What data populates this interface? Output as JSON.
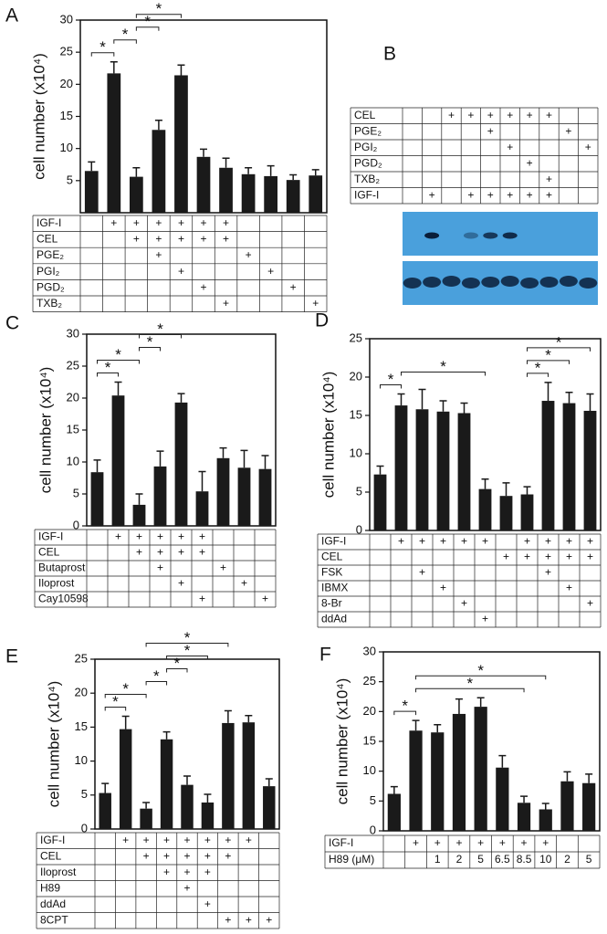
{
  "chart_data": [
    {
      "type": "bar",
      "panel": "A",
      "ylabel": "cell number (x10⁴)",
      "color": "#1a1a1a",
      "values": [
        6.5,
        21.7,
        5.6,
        12.9,
        21.4,
        8.7,
        7.0,
        6.0,
        5.7,
        5.1,
        5.8
      ],
      "errors": [
        1.4,
        1.8,
        1.4,
        1.5,
        1.6,
        1.2,
        1.5,
        1.0,
        1.6,
        0.8,
        0.9
      ],
      "ylim": [
        0,
        30
      ],
      "yticks": [
        5,
        10,
        15,
        20,
        25,
        30
      ],
      "conditions": [
        {
          "label": "IGF-I",
          "cells": [
            null,
            "+",
            "+",
            "+",
            "+",
            "+",
            "+",
            null,
            null,
            null,
            null
          ]
        },
        {
          "label": "CEL",
          "cells": [
            null,
            null,
            "+",
            "+",
            "+",
            "+",
            "+",
            null,
            null,
            null,
            null
          ]
        },
        {
          "label": "PGE₂",
          "cells": [
            null,
            null,
            null,
            "+",
            null,
            null,
            null,
            "+",
            null,
            null,
            null
          ]
        },
        {
          "label": "PGI₂",
          "cells": [
            null,
            null,
            null,
            null,
            "+",
            null,
            null,
            null,
            "+",
            null,
            null
          ]
        },
        {
          "label": "PGD₂",
          "cells": [
            null,
            null,
            null,
            null,
            null,
            "+",
            null,
            null,
            null,
            "+",
            null
          ]
        },
        {
          "label": "TXB₂",
          "cells": [
            null,
            null,
            null,
            null,
            null,
            null,
            "+",
            null,
            null,
            null,
            "+"
          ]
        }
      ],
      "comparisons": [
        {
          "from": 0,
          "to": 1,
          "label": "*"
        },
        {
          "from": 1,
          "to": 2,
          "label": "*"
        },
        {
          "from": 2,
          "to": 3,
          "label": "*"
        },
        {
          "from": 2,
          "to": 4,
          "label": "*"
        }
      ]
    },
    {
      "type": "bar",
      "panel": "C",
      "ylabel": "cell number (x10⁴)",
      "color": "#1a1a1a",
      "values": [
        8.4,
        20.4,
        3.3,
        9.3,
        19.3,
        5.4,
        10.6,
        9.1,
        8.9
      ],
      "errors": [
        1.9,
        2.1,
        1.7,
        2.4,
        1.4,
        3.1,
        1.6,
        2.7,
        2.1
      ],
      "ylim": [
        0,
        30
      ],
      "yticks": [
        0,
        5,
        10,
        15,
        20,
        25,
        30
      ],
      "conditions": [
        {
          "label": "IGF-I",
          "cells": [
            null,
            "+",
            "+",
            "+",
            "+",
            "+",
            null,
            null,
            null
          ]
        },
        {
          "label": "CEL",
          "cells": [
            null,
            null,
            "+",
            "+",
            "+",
            "+",
            null,
            null,
            null
          ]
        },
        {
          "label": "Butaprost",
          "cells": [
            null,
            null,
            null,
            "+",
            null,
            null,
            "+",
            null,
            null
          ]
        },
        {
          "label": "Iloprost",
          "cells": [
            null,
            null,
            null,
            null,
            "+",
            null,
            null,
            "+",
            null
          ]
        },
        {
          "label": "Cay10598",
          "cells": [
            null,
            null,
            null,
            null,
            null,
            "+",
            null,
            null,
            "+"
          ]
        }
      ],
      "comparisons": [
        {
          "from": 0,
          "to": 1,
          "label": "*"
        },
        {
          "from": 0,
          "to": 2,
          "label": "*"
        },
        {
          "from": 2,
          "to": 3,
          "label": "*"
        },
        {
          "from": 2,
          "to": 4,
          "label": "*"
        }
      ]
    },
    {
      "type": "bar",
      "panel": "D",
      "ylabel": "cell number (x10⁴)",
      "color": "#1a1a1a",
      "values": [
        7.3,
        16.3,
        15.8,
        15.5,
        15.3,
        5.4,
        4.5,
        4.7,
        16.9,
        16.6,
        15.6
      ],
      "errors": [
        1.1,
        1.5,
        2.6,
        1.4,
        1.3,
        1.3,
        1.7,
        1.0,
        2.4,
        1.4,
        2.2
      ],
      "ylim": [
        0,
        25
      ],
      "yticks": [
        0,
        5,
        10,
        15,
        20,
        25
      ],
      "conditions": [
        {
          "label": "IGF-I",
          "cells": [
            null,
            "+",
            "+",
            "+",
            "+",
            "+",
            null,
            "+",
            "+",
            "+",
            "+"
          ]
        },
        {
          "label": "CEL",
          "cells": [
            null,
            null,
            null,
            null,
            null,
            null,
            "+",
            "+",
            "+",
            "+",
            "+"
          ]
        },
        {
          "label": "FSK",
          "cells": [
            null,
            null,
            "+",
            null,
            null,
            null,
            null,
            null,
            "+",
            null,
            null
          ]
        },
        {
          "label": "IBMX",
          "cells": [
            null,
            null,
            null,
            "+",
            null,
            null,
            null,
            null,
            null,
            "+",
            null
          ]
        },
        {
          "label": "8-Br",
          "cells": [
            null,
            null,
            null,
            null,
            "+",
            null,
            null,
            null,
            null,
            null,
            "+"
          ]
        },
        {
          "label": "ddAd",
          "cells": [
            null,
            null,
            null,
            null,
            null,
            "+",
            null,
            null,
            null,
            null,
            null
          ]
        }
      ],
      "comparisons": [
        {
          "from": 0,
          "to": 1,
          "label": "*"
        },
        {
          "from": 1,
          "to": 5,
          "label": "*"
        },
        {
          "from": 7,
          "to": 8,
          "label": "*"
        },
        {
          "from": 7,
          "to": 9,
          "label": "*"
        },
        {
          "from": 7,
          "to": 10,
          "label": "*"
        }
      ]
    },
    {
      "type": "bar",
      "panel": "E",
      "ylabel": "cell number (x10⁴)",
      "color": "#1a1a1a",
      "values": [
        5.3,
        14.7,
        3.0,
        13.2,
        6.5,
        3.9,
        15.6,
        15.7,
        6.3
      ],
      "errors": [
        1.4,
        1.9,
        0.9,
        1.1,
        1.3,
        1.2,
        1.8,
        1.0,
        1.1
      ],
      "ylim": [
        0,
        25
      ],
      "yticks": [
        0,
        5,
        10,
        15,
        20,
        25
      ],
      "conditions": [
        {
          "label": "IGF-I",
          "cells": [
            null,
            "+",
            "+",
            "+",
            "+",
            "+",
            "+",
            "+",
            null
          ]
        },
        {
          "label": "CEL",
          "cells": [
            null,
            null,
            "+",
            "+",
            "+",
            "+",
            "+",
            null,
            null
          ]
        },
        {
          "label": "Iloprost",
          "cells": [
            null,
            null,
            null,
            "+",
            "+",
            "+",
            null,
            null,
            null
          ]
        },
        {
          "label": "H89",
          "cells": [
            null,
            null,
            null,
            null,
            "+",
            null,
            null,
            null,
            null
          ]
        },
        {
          "label": "ddAd",
          "cells": [
            null,
            null,
            null,
            null,
            null,
            "+",
            null,
            null,
            null
          ]
        },
        {
          "label": "8CPT",
          "cells": [
            null,
            null,
            null,
            null,
            null,
            null,
            "+",
            "+",
            "+"
          ]
        }
      ],
      "comparisons": [
        {
          "from": 0,
          "to": 1,
          "label": "*"
        },
        {
          "from": 0,
          "to": 2,
          "label": "*"
        },
        {
          "from": 2,
          "to": 3,
          "label": "*"
        },
        {
          "from": 3,
          "to": 4,
          "label": "*"
        },
        {
          "from": 3,
          "to": 5,
          "label": "*"
        },
        {
          "from": 2,
          "to": 6,
          "label": "*"
        }
      ]
    },
    {
      "type": "bar",
      "panel": "F",
      "ylabel": "cell number (x10⁴)",
      "color": "#1a1a1a",
      "values": [
        6.2,
        16.8,
        16.5,
        19.6,
        20.8,
        10.6,
        4.7,
        3.6,
        8.3,
        8.0
      ],
      "errors": [
        1.2,
        1.7,
        1.3,
        2.5,
        1.5,
        2.0,
        1.1,
        1.0,
        1.6,
        1.5
      ],
      "ylim": [
        0,
        30
      ],
      "yticks": [
        0,
        5,
        10,
        15,
        20,
        25,
        30
      ],
      "conditions": [
        {
          "label": "IGF-I",
          "cells": [
            null,
            "+",
            "+",
            "+",
            "+",
            "+",
            "+",
            "+",
            null,
            null
          ]
        },
        {
          "label": "H89 (μM)",
          "cells": [
            null,
            null,
            1,
            2,
            5,
            6.5,
            8.5,
            10,
            2,
            5
          ]
        }
      ],
      "comparisons": [
        {
          "from": 0,
          "to": 1,
          "label": "*"
        },
        {
          "from": 1,
          "to": 6,
          "label": "*"
        },
        {
          "from": 1,
          "to": 7,
          "label": "*"
        }
      ]
    }
  ],
  "blot": {
    "panel": "B",
    "rows": [
      {
        "label": "CEL",
        "cells": [
          null,
          null,
          "+",
          "+",
          "+",
          "+",
          "+",
          "+",
          null,
          null
        ]
      },
      {
        "label": "PGE₂",
        "cells": [
          null,
          null,
          null,
          null,
          "+",
          null,
          null,
          null,
          "+",
          null
        ]
      },
      {
        "label": "PGI₂",
        "cells": [
          null,
          null,
          null,
          null,
          null,
          "+",
          null,
          null,
          null,
          "+"
        ]
      },
      {
        "label": "PGD₂",
        "cells": [
          null,
          null,
          null,
          null,
          null,
          null,
          "+",
          null,
          null,
          null
        ]
      },
      {
        "label": "TXB₂",
        "cells": [
          null,
          null,
          null,
          null,
          null,
          null,
          null,
          "+",
          null,
          null
        ]
      },
      {
        "label": "IGF-I",
        "cells": [
          null,
          "+",
          null,
          "+",
          "+",
          "+",
          "+",
          "+",
          null,
          null
        ]
      }
    ]
  }
}
